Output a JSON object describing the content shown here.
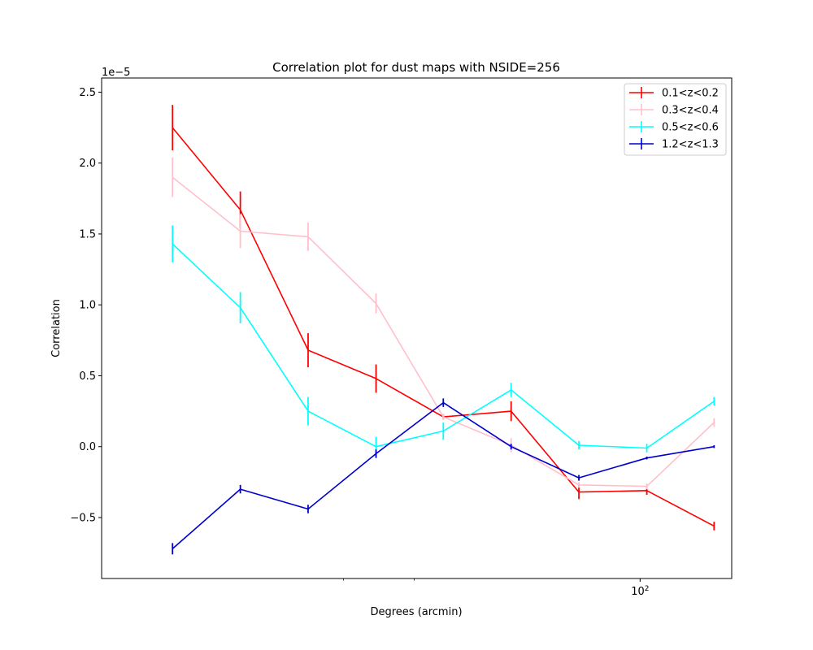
{
  "chart_data": {
    "type": "line",
    "title": "Correlation plot for dust maps with NSIDE=256",
    "xlabel": "Degrees (arcmin)",
    "ylabel": "Correlation",
    "x_scale": "log",
    "y_scale_factor_label": "1e−5",
    "grid": false,
    "legend_position": "top-right",
    "x": [
      30,
      39.5,
      52,
      68.5,
      90,
      118.5,
      156,
      205.5,
      270
    ],
    "xlim": [
      22.5,
      290
    ],
    "ylim": [
      -0.93,
      2.6
    ],
    "x_ticks": [
      {
        "value": 200,
        "label": "10",
        "exp": "2"
      }
    ],
    "x_minor_ticks": [
      60,
      80
    ],
    "y_ticks": [
      {
        "value": -0.5,
        "label": "−0.5"
      },
      {
        "value": 0.0,
        "label": "0.0"
      },
      {
        "value": 0.5,
        "label": "0.5"
      },
      {
        "value": 1.0,
        "label": "1.0"
      },
      {
        "value": 1.5,
        "label": "1.5"
      },
      {
        "value": 2.0,
        "label": "2.0"
      },
      {
        "value": 2.5,
        "label": "2.5"
      }
    ],
    "series": [
      {
        "name": "0.1<z<0.2",
        "color": "#ff0000",
        "values": [
          2.25,
          1.67,
          0.68,
          0.48,
          0.21,
          0.25,
          -0.32,
          -0.31,
          -0.56
        ],
        "errors": [
          0.16,
          0.13,
          0.12,
          0.1,
          0.02,
          0.07,
          0.05,
          0.03,
          0.03
        ]
      },
      {
        "name": "0.3<z<0.4",
        "color": "#ffc0cb",
        "values": [
          1.9,
          1.52,
          1.48,
          1.01,
          0.21,
          0.01,
          -0.27,
          -0.28,
          0.17
        ],
        "errors": [
          0.14,
          0.12,
          0.1,
          0.07,
          0.02,
          0.05,
          0.02,
          0.02,
          0.03
        ]
      },
      {
        "name": "0.5<z<0.6",
        "color": "#00ffff",
        "values": [
          1.43,
          0.98,
          0.25,
          0.0,
          0.11,
          0.4,
          0.01,
          -0.01,
          0.32
        ],
        "errors": [
          0.13,
          0.11,
          0.1,
          0.07,
          0.06,
          0.05,
          0.03,
          0.03,
          0.03
        ]
      },
      {
        "name": "1.2<z<1.3",
        "color": "#0000cc",
        "values": [
          -0.72,
          -0.3,
          -0.44,
          -0.05,
          0.31,
          0.0,
          -0.22,
          -0.08,
          0.0
        ],
        "errors": [
          0.04,
          0.03,
          0.03,
          0.03,
          0.03,
          0.02,
          0.02,
          0.01,
          0.01
        ]
      }
    ]
  }
}
